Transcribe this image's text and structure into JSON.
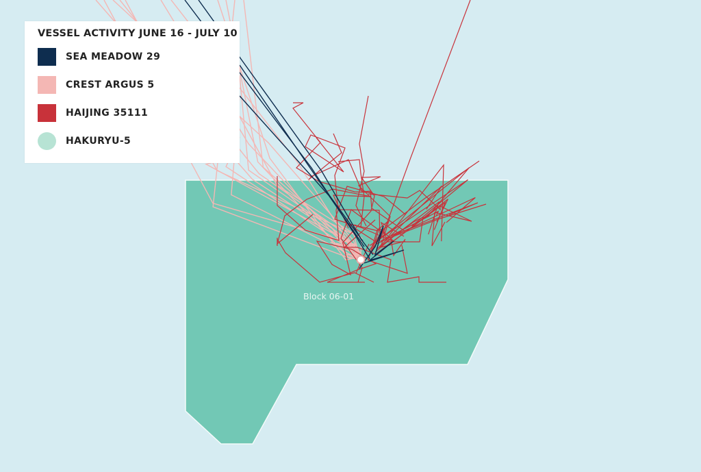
{
  "legend": {
    "title": "VESSEL ACTIVITY JUNE 16 - JULY 10",
    "items": [
      {
        "label": "SEA MEADOW 29",
        "color": "#0e2d4f",
        "shape": "square"
      },
      {
        "label": "CREST ARGUS 5",
        "color": "#f4b7b4",
        "shape": "square"
      },
      {
        "label": "HAIJING 35111",
        "color": "#c8323a",
        "shape": "square"
      },
      {
        "label": "HAKURYU-5",
        "color": "#b7e3d4",
        "shape": "circle"
      }
    ]
  },
  "map": {
    "block_label": "Block 06-01",
    "block_color": "#72c8b5",
    "water_color": "#d6ecf2",
    "marker_icon": "rig-location-icon"
  }
}
